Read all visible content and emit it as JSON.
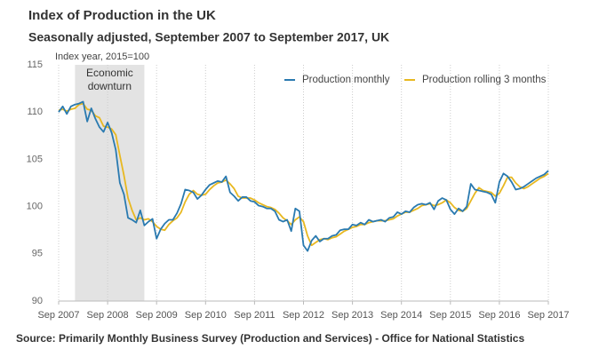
{
  "chart_data": {
    "type": "line",
    "title": "Index of Production in the UK",
    "subtitle": "Seasonally adjusted, September 2007 to September 2017, UK",
    "y_label": "Index year, 2015=100",
    "source": "Source: Primarily Monthly Business Survey (Production and Services) -  Office for National Statistics",
    "shade": {
      "label_lines": [
        "Economic",
        "downturn"
      ],
      "start": "2008-01",
      "end": "2009-06",
      "color": "#e3e3e3"
    },
    "x": [
      "2007-09",
      "2007-10",
      "2007-11",
      "2007-12",
      "2008-01",
      "2008-02",
      "2008-03",
      "2008-04",
      "2008-05",
      "2008-06",
      "2008-07",
      "2008-08",
      "2008-09",
      "2008-10",
      "2008-11",
      "2008-12",
      "2009-01",
      "2009-02",
      "2009-03",
      "2009-04",
      "2009-05",
      "2009-06",
      "2009-07",
      "2009-08",
      "2009-09",
      "2009-10",
      "2009-11",
      "2009-12",
      "2010-01",
      "2010-02",
      "2010-03",
      "2010-04",
      "2010-05",
      "2010-06",
      "2010-07",
      "2010-08",
      "2010-09",
      "2010-10",
      "2010-11",
      "2010-12",
      "2011-01",
      "2011-02",
      "2011-03",
      "2011-04",
      "2011-05",
      "2011-06",
      "2011-07",
      "2011-08",
      "2011-09",
      "2011-10",
      "2011-11",
      "2011-12",
      "2012-01",
      "2012-02",
      "2012-03",
      "2012-04",
      "2012-05",
      "2012-06",
      "2012-07",
      "2012-08",
      "2012-09",
      "2012-10",
      "2012-11",
      "2012-12",
      "2013-01",
      "2013-02",
      "2013-03",
      "2013-04",
      "2013-05",
      "2013-06",
      "2013-07",
      "2013-08",
      "2013-09",
      "2013-10",
      "2013-11",
      "2013-12",
      "2014-01",
      "2014-02",
      "2014-03",
      "2014-04",
      "2014-05",
      "2014-06",
      "2014-07",
      "2014-08",
      "2014-09",
      "2014-10",
      "2014-11",
      "2014-12",
      "2015-01",
      "2015-02",
      "2015-03",
      "2015-04",
      "2015-05",
      "2015-06",
      "2015-07",
      "2015-08",
      "2015-09",
      "2015-10",
      "2015-11",
      "2015-12",
      "2016-01",
      "2016-02",
      "2016-03",
      "2016-04",
      "2016-05",
      "2016-06",
      "2016-07",
      "2016-08",
      "2016-09",
      "2016-10",
      "2016-11",
      "2016-12",
      "2017-01",
      "2017-02",
      "2017-03",
      "2017-04",
      "2017-05",
      "2017-06",
      "2017-07",
      "2017-08",
      "2017-09"
    ],
    "series": [
      {
        "name": "Production monthly",
        "color": "#2a7ab0",
        "values": [
          110.0,
          110.6,
          109.8,
          110.6,
          110.8,
          110.9,
          111.1,
          109.0,
          110.4,
          109.3,
          108.4,
          107.9,
          108.9,
          107.8,
          106.0,
          102.5,
          101.3,
          98.8,
          98.6,
          98.3,
          99.6,
          98.0,
          98.4,
          98.7,
          96.6,
          97.6,
          98.2,
          98.6,
          98.6,
          99.3,
          100.3,
          101.8,
          101.7,
          101.5,
          100.8,
          101.2,
          101.8,
          102.3,
          102.5,
          102.7,
          102.6,
          103.2,
          101.5,
          101.1,
          100.6,
          101.0,
          101.0,
          100.6,
          100.5,
          100.1,
          100.0,
          99.8,
          99.8,
          99.5,
          98.6,
          98.4,
          98.6,
          97.4,
          99.8,
          99.5,
          95.9,
          95.3,
          96.4,
          96.9,
          96.3,
          96.6,
          96.6,
          96.9,
          97.0,
          97.5,
          97.6,
          97.6,
          98.1,
          98.0,
          98.3,
          98.1,
          98.6,
          98.4,
          98.5,
          98.6,
          98.4,
          98.8,
          98.9,
          99.4,
          99.2,
          99.5,
          99.4,
          99.9,
          100.2,
          100.3,
          100.2,
          100.4,
          99.7,
          100.6,
          100.9,
          100.7,
          99.7,
          99.2,
          99.8,
          99.5,
          100.0,
          102.4,
          101.8,
          101.7,
          101.6,
          101.5,
          101.3,
          100.4,
          102.6,
          103.5,
          103.2,
          102.6,
          101.8,
          101.9,
          102.1,
          102.4,
          102.7,
          103.0,
          103.2,
          103.4,
          103.8
        ]
      },
      {
        "name": "Production rolling 3 months",
        "color": "#e8b820",
        "values": [
          110.2,
          110.3,
          110.1,
          110.3,
          110.4,
          110.8,
          110.9,
          110.3,
          110.2,
          109.6,
          109.4,
          108.5,
          108.4,
          108.2,
          107.6,
          105.4,
          103.3,
          100.9,
          99.6,
          98.6,
          98.8,
          98.6,
          98.7,
          98.4,
          97.9,
          97.6,
          97.5,
          98.1,
          98.5,
          98.8,
          99.4,
          100.5,
          101.3,
          101.7,
          101.3,
          101.2,
          101.3,
          101.8,
          102.2,
          102.5,
          102.6,
          102.8,
          102.4,
          101.9,
          101.1,
          100.9,
          100.9,
          100.9,
          100.7,
          100.4,
          100.2,
          100.0,
          99.9,
          99.7,
          99.3,
          98.8,
          98.5,
          98.1,
          98.6,
          98.9,
          98.4,
          96.9,
          95.9,
          96.2,
          96.5,
          96.6,
          96.5,
          96.7,
          96.8,
          97.1,
          97.4,
          97.6,
          97.8,
          97.9,
          98.1,
          98.1,
          98.3,
          98.4,
          98.5,
          98.5,
          98.5,
          98.6,
          98.7,
          99.0,
          99.2,
          99.4,
          99.4,
          99.6,
          99.8,
          100.1,
          100.2,
          100.3,
          100.1,
          100.2,
          100.4,
          100.7,
          100.4,
          99.9,
          99.6,
          99.5,
          99.8,
          100.6,
          101.4,
          102.0,
          101.7,
          101.6,
          101.5,
          101.1,
          101.4,
          102.2,
          103.1,
          103.1,
          102.5,
          102.1,
          101.9,
          102.1,
          102.4,
          102.7,
          103.0,
          103.2,
          103.5
        ]
      }
    ],
    "ylim": [
      90,
      115
    ],
    "yticks": [
      90,
      95,
      100,
      105,
      110,
      115
    ],
    "xticks": [
      {
        "value": "2007-09",
        "label": "Sep 2007"
      },
      {
        "value": "2008-09",
        "label": "Sep 2008"
      },
      {
        "value": "2009-09",
        "label": "Sep 2009"
      },
      {
        "value": "2010-09",
        "label": "Sep 2010"
      },
      {
        "value": "2011-09",
        "label": "Sep 2011"
      },
      {
        "value": "2012-09",
        "label": "Sep 2012"
      },
      {
        "value": "2013-09",
        "label": "Sep 2013"
      },
      {
        "value": "2014-09",
        "label": "Sep 2014"
      },
      {
        "value": "2015-09",
        "label": "Sep 2015"
      },
      {
        "value": "2016-09",
        "label": "Sep 2016"
      },
      {
        "value": "2017-09",
        "label": "Sep 2017"
      }
    ],
    "legend": "top-right",
    "grid": true
  }
}
